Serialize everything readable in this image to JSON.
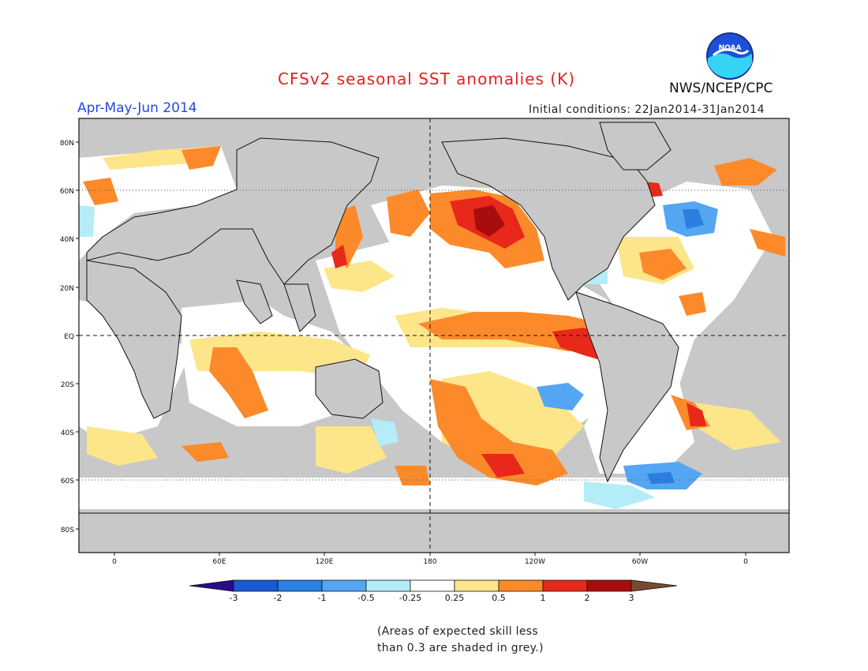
{
  "header": {
    "title": "CFSv2 seasonal SST anomalies (K)",
    "season": "Apr-May-Jun 2014",
    "initial_conditions": "Initial conditions: 22Jan2014-31Jan2014",
    "agency": "NWS/NCEP/CPC",
    "logo_text": "NOAA"
  },
  "map": {
    "lat_labels": [
      "80N",
      "60N",
      "40N",
      "20N",
      "EQ",
      "20S",
      "40S",
      "60S",
      "80S"
    ],
    "lon_labels": [
      "0",
      "60E",
      "120E",
      "180",
      "120W",
      "60W",
      "0"
    ],
    "land_color": "#c8c8c8",
    "ocean_color": "#ffffff"
  },
  "colorbar": {
    "tick_labels": [
      "-3",
      "-2",
      "-1",
      "-0.5",
      "-0.25",
      "0.25",
      "0.5",
      "1",
      "2",
      "3"
    ],
    "colors": [
      "#2a0a8c",
      "#1a5ad0",
      "#2c7fe0",
      "#55a6f2",
      "#b4ecf8",
      "#ffffff",
      "#fde58a",
      "#fd8a2a",
      "#e8281a",
      "#a80d0d",
      "#7a4a30"
    ]
  },
  "footnote": {
    "line1": "(Areas of expected skill less",
    "line2": "than 0.3 are shaded in grey.)"
  }
}
